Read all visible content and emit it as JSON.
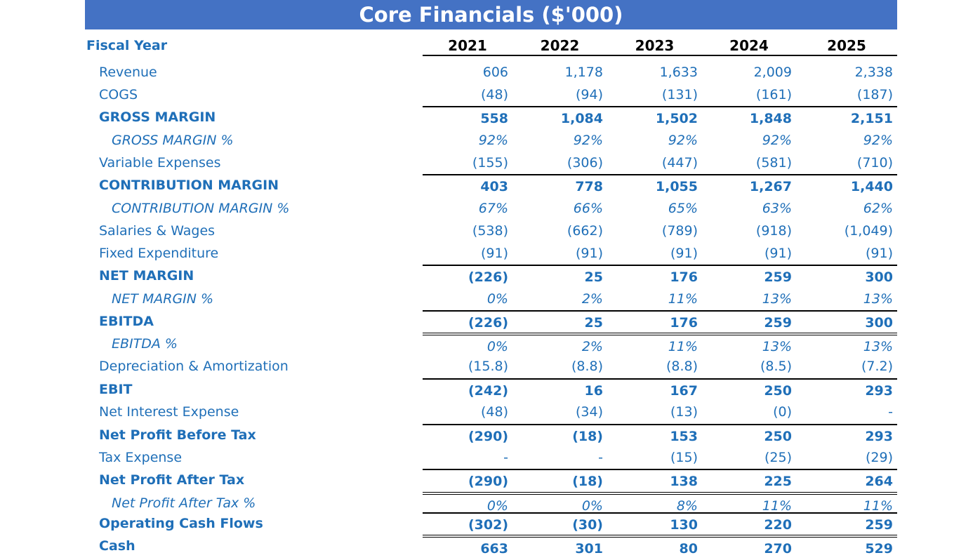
{
  "title": "Core Financials ($'000)",
  "fiscal_year_label": "Fiscal Year",
  "years": [
    "2021",
    "2022",
    "2023",
    "2024",
    "2025"
  ],
  "rows": [
    {
      "label": "Revenue",
      "style": "normal",
      "line": "none",
      "values": [
        "606",
        "1,178",
        "1,633",
        "2,009",
        "2,338"
      ]
    },
    {
      "label": "COGS",
      "style": "normal",
      "line": "none",
      "values": [
        "(48)",
        "(94)",
        "(131)",
        "(161)",
        "(187)"
      ]
    },
    {
      "label": "GROSS MARGIN",
      "style": "bold",
      "line": "single",
      "values": [
        "558",
        "1,084",
        "1,502",
        "1,848",
        "2,151"
      ]
    },
    {
      "label": "GROSS MARGIN %",
      "style": "italic",
      "line": "none",
      "values": [
        "92%",
        "92%",
        "92%",
        "92%",
        "92%"
      ]
    },
    {
      "label": "Variable Expenses",
      "style": "normal",
      "line": "none",
      "values": [
        "(155)",
        "(306)",
        "(447)",
        "(581)",
        "(710)"
      ]
    },
    {
      "label": "CONTRIBUTION MARGIN",
      "style": "bold",
      "line": "single",
      "values": [
        "403",
        "778",
        "1,055",
        "1,267",
        "1,440"
      ]
    },
    {
      "label": "CONTRIBUTION MARGIN %",
      "style": "italic",
      "line": "none",
      "values": [
        "67%",
        "66%",
        "65%",
        "63%",
        "62%"
      ]
    },
    {
      "label": "Salaries & Wages",
      "style": "normal",
      "line": "none",
      "values": [
        "(538)",
        "(662)",
        "(789)",
        "(918)",
        "(1,049)"
      ]
    },
    {
      "label": "Fixed Expenditure",
      "style": "normal",
      "line": "none",
      "values": [
        "(91)",
        "(91)",
        "(91)",
        "(91)",
        "(91)"
      ]
    },
    {
      "label": "NET MARGIN",
      "style": "bold",
      "line": "single",
      "values": [
        "(226)",
        "25",
        "176",
        "259",
        "300"
      ]
    },
    {
      "label": "NET MARGIN %",
      "style": "italic",
      "line": "none",
      "values": [
        "0%",
        "2%",
        "11%",
        "13%",
        "13%"
      ]
    },
    {
      "label": "EBITDA",
      "style": "bold",
      "line": "single",
      "values": [
        "(226)",
        "25",
        "176",
        "259",
        "300"
      ]
    },
    {
      "label": "EBITDA %",
      "style": "italic",
      "line": "double",
      "values": [
        "0%",
        "2%",
        "11%",
        "13%",
        "13%"
      ]
    },
    {
      "label": "Depreciation & Amortization",
      "style": "normal",
      "line": "none",
      "values": [
        "(15.8)",
        "(8.8)",
        "(8.8)",
        "(8.5)",
        "(7.2)"
      ]
    },
    {
      "label": "EBIT",
      "style": "bold",
      "line": "single",
      "values": [
        "(242)",
        "16",
        "167",
        "250",
        "293"
      ]
    },
    {
      "label": "Net Interest Expense",
      "style": "normal",
      "line": "none",
      "values": [
        "(48)",
        "(34)",
        "(13)",
        "(0)",
        "-"
      ]
    },
    {
      "label": "Net Profit Before Tax",
      "style": "bold",
      "line": "single",
      "values": [
        "(290)",
        "(18)",
        "153",
        "250",
        "293"
      ]
    },
    {
      "label": "Tax Expense",
      "style": "normal",
      "line": "none",
      "values": [
        "-",
        "-",
        "(15)",
        "(25)",
        "(29)"
      ]
    },
    {
      "label": "Net Profit After Tax",
      "style": "bold",
      "line": "single",
      "values": [
        "(290)",
        "(18)",
        "138",
        "225",
        "264"
      ]
    },
    {
      "label": "Net Profit After Tax %",
      "style": "italic",
      "line": "double",
      "values": [
        "0%",
        "0%",
        "8%",
        "11%",
        "11%"
      ]
    },
    {
      "label": "Operating Cash Flows",
      "style": "bold",
      "line": "single",
      "values": [
        "(302)",
        "(30)",
        "130",
        "220",
        "259"
      ]
    },
    {
      "label": "Cash",
      "style": "bold",
      "line": "double",
      "values": [
        "663",
        "301",
        "80",
        "270",
        "529"
      ]
    }
  ]
}
